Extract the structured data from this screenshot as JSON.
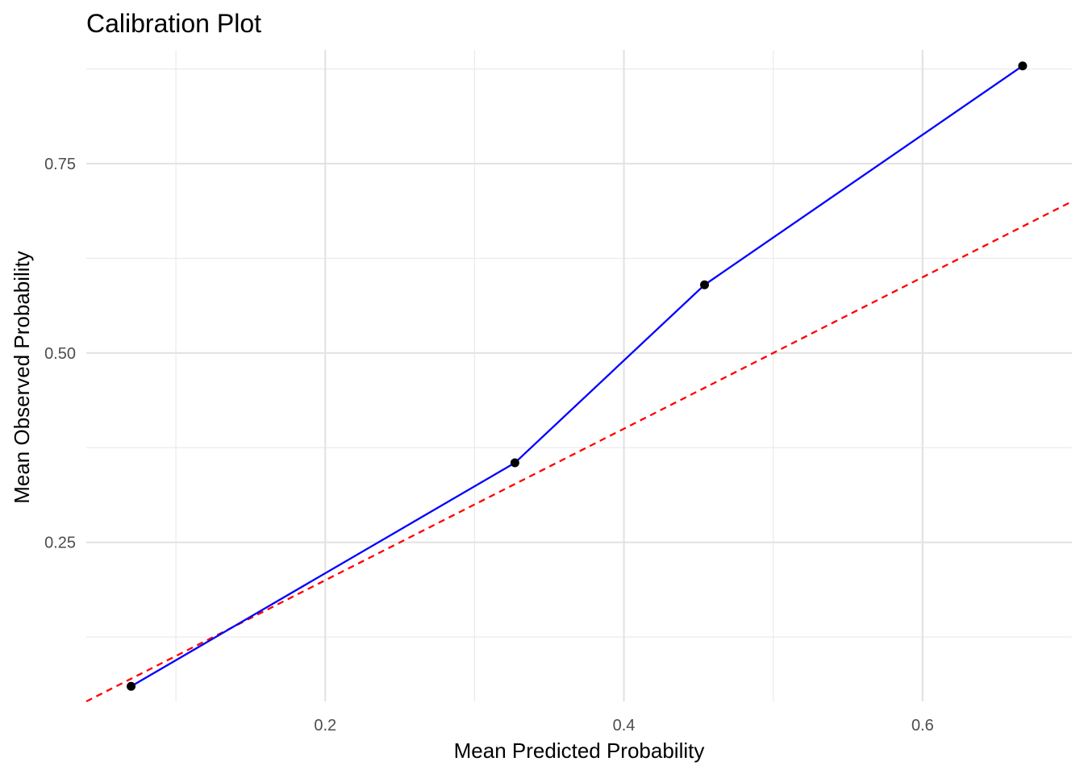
{
  "chart_data": {
    "type": "line",
    "title": "Calibration Plot",
    "xlabel": "Mean Predicted Probability",
    "ylabel": "Mean Observed Probability",
    "xlim": [
      0.04,
      0.7
    ],
    "ylim": [
      0.04,
      0.9
    ],
    "x_ticks": [
      0.2,
      0.4,
      0.6
    ],
    "x_tick_labels": [
      "0.2",
      "0.4",
      "0.6"
    ],
    "x_minor_ticks": [
      0.1,
      0.3,
      0.5
    ],
    "y_ticks": [
      0.25,
      0.5,
      0.75
    ],
    "y_tick_labels": [
      "0.25",
      "0.50",
      "0.75"
    ],
    "y_minor_ticks": [
      0.125,
      0.375,
      0.625,
      0.875
    ],
    "grid": true,
    "series": [
      {
        "style": "solid",
        "color": "#0000ff",
        "marker_color": "#000000",
        "x": [
          0.07,
          0.327,
          0.454,
          0.667
        ],
        "y": [
          0.06,
          0.355,
          0.59,
          0.879
        ]
      }
    ],
    "reference_line": {
      "style": "dashed",
      "color": "#ff0000",
      "x": [
        0.04,
        0.7
      ],
      "y": [
        0.04,
        0.7
      ]
    }
  }
}
